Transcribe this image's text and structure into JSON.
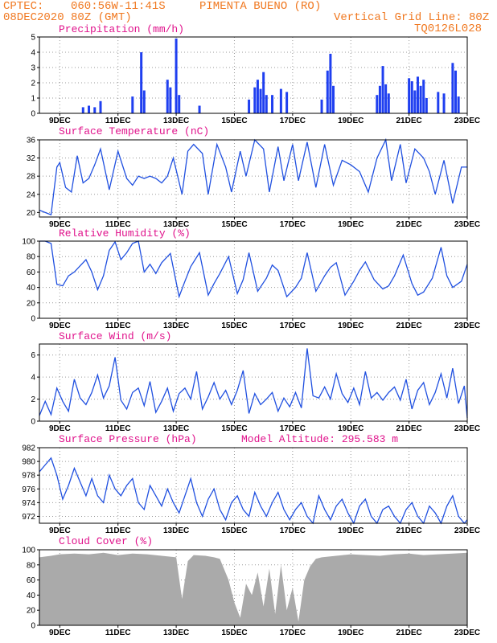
{
  "header": {
    "source": "CPTEC:",
    "coords": "060:56W-11:41S",
    "location": "PIMENTA BUENO (RO)",
    "run": "08DEC2020 80Z (GMT)",
    "grid_note": "Vertical Grid Line: 80Z",
    "code": "TQ0126L028"
  },
  "x_axis": {
    "ticks": [
      "9DEC",
      "11DEC",
      "13DEC",
      "15DEC",
      "17DEC",
      "19DEC",
      "21DEC",
      "23DEC"
    ],
    "tick_days": [
      1,
      3,
      5,
      7,
      9,
      11,
      13,
      15
    ],
    "range_days": [
      0.3,
      15
    ]
  },
  "chart_data": [
    {
      "type": "bar",
      "title": "Precipitation (mm/h)",
      "ylim": [
        0,
        5
      ],
      "yticks": [
        0,
        1,
        2,
        3,
        4,
        5
      ],
      "color": "#1f3ff0",
      "x": [
        1.8,
        2.0,
        2.2,
        2.4,
        3.5,
        3.8,
        3.9,
        4.7,
        4.8,
        5.0,
        5.1,
        5.8,
        7.5,
        7.7,
        7.8,
        7.9,
        8.0,
        8.1,
        8.3,
        8.6,
        8.8,
        10.0,
        10.2,
        10.3,
        10.4,
        11.9,
        12.0,
        12.1,
        12.2,
        12.3,
        13.0,
        13.1,
        13.2,
        13.3,
        13.4,
        13.5,
        13.6,
        14.0,
        14.2,
        14.5,
        14.6,
        14.7
      ],
      "values": [
        0.4,
        0.5,
        0.4,
        0.8,
        1.1,
        4.0,
        1.5,
        2.2,
        1.7,
        4.9,
        1.2,
        0.5,
        0.9,
        1.7,
        2.2,
        1.6,
        2.7,
        1.2,
        1.2,
        1.6,
        1.4,
        0.9,
        2.8,
        3.9,
        1.8,
        1.2,
        1.8,
        3.1,
        1.9,
        1.3,
        2.3,
        2.1,
        1.5,
        2.4,
        1.8,
        2.2,
        1.0,
        1.4,
        1.3,
        3.3,
        2.8,
        1.1
      ]
    },
    {
      "type": "line",
      "title": "Surface Temperature (nC)",
      "ylim": [
        19,
        36
      ],
      "yticks": [
        20,
        24,
        28,
        32,
        36
      ],
      "color": "#2050e0",
      "x": [
        0.3,
        0.5,
        0.7,
        0.9,
        1.0,
        1.2,
        1.4,
        1.6,
        1.8,
        2.0,
        2.2,
        2.4,
        2.7,
        3.0,
        3.3,
        3.5,
        3.7,
        3.9,
        4.1,
        4.3,
        4.5,
        4.7,
        4.9,
        5.2,
        5.4,
        5.6,
        5.9,
        6.1,
        6.4,
        6.7,
        6.9,
        7.2,
        7.4,
        7.7,
        8.0,
        8.2,
        8.5,
        8.7,
        9.0,
        9.2,
        9.5,
        9.8,
        10.1,
        10.4,
        10.7,
        11.0,
        11.3,
        11.6,
        11.9,
        12.2,
        12.4,
        12.7,
        12.9,
        13.2,
        13.5,
        13.7,
        13.9,
        14.2,
        14.5,
        14.8,
        15.0
      ],
      "values": [
        20.5,
        20.0,
        19.5,
        30.0,
        31.0,
        25.5,
        24.5,
        32.5,
        26.5,
        27.5,
        30.5,
        34.0,
        25.0,
        33.5,
        27.5,
        26.0,
        28.0,
        27.5,
        28.0,
        27.5,
        26.5,
        28.0,
        32.0,
        24.0,
        33.5,
        35.0,
        33.0,
        24.0,
        35.0,
        30.0,
        24.5,
        33.5,
        28.0,
        36.0,
        34.0,
        24.5,
        34.5,
        27.0,
        35.0,
        27.0,
        35.5,
        25.5,
        35.0,
        26.0,
        31.5,
        30.5,
        29.0,
        24.5,
        32.0,
        36.0,
        27.0,
        35.0,
        26.5,
        34.0,
        32.0,
        29.0,
        24.0,
        31.5,
        22.0,
        30.0,
        30.0
      ]
    },
    {
      "type": "line",
      "title": "Relative Humidity (%)",
      "ylim": [
        0,
        100
      ],
      "yticks": [
        0,
        20,
        40,
        60,
        80,
        100
      ],
      "color": "#2050e0",
      "x": [
        0.3,
        0.5,
        0.7,
        0.9,
        1.1,
        1.3,
        1.5,
        1.7,
        1.9,
        2.1,
        2.3,
        2.5,
        2.7,
        2.9,
        3.1,
        3.3,
        3.5,
        3.7,
        3.9,
        4.1,
        4.3,
        4.5,
        4.8,
        5.1,
        5.3,
        5.5,
        5.8,
        6.1,
        6.3,
        6.5,
        6.8,
        7.1,
        7.3,
        7.5,
        7.8,
        8.1,
        8.3,
        8.5,
        8.8,
        9.1,
        9.3,
        9.5,
        9.8,
        10.1,
        10.3,
        10.5,
        10.8,
        11.1,
        11.3,
        11.5,
        11.8,
        12.1,
        12.3,
        12.5,
        12.8,
        13.1,
        13.3,
        13.5,
        13.8,
        14.1,
        14.3,
        14.5,
        14.8,
        15.0
      ],
      "values": [
        100,
        100,
        97,
        44,
        42,
        55,
        60,
        68,
        76,
        60,
        37,
        55,
        88,
        99,
        76,
        85,
        97,
        100,
        60,
        70,
        58,
        72,
        84,
        28,
        48,
        67,
        85,
        30,
        45,
        58,
        80,
        32,
        50,
        85,
        35,
        52,
        69,
        62,
        28,
        40,
        52,
        85,
        35,
        55,
        66,
        72,
        30,
        48,
        62,
        73,
        50,
        38,
        42,
        55,
        82,
        45,
        30,
        34,
        52,
        92,
        55,
        40,
        48,
        70
      ]
    },
    {
      "type": "line",
      "title": "Surface Wind (m/s)",
      "ylim": [
        0,
        7
      ],
      "yticks": [
        0,
        2,
        4,
        6
      ],
      "color": "#2050e0",
      "x": [
        0.3,
        0.5,
        0.7,
        0.9,
        1.1,
        1.3,
        1.5,
        1.7,
        1.9,
        2.1,
        2.3,
        2.5,
        2.7,
        2.9,
        3.1,
        3.3,
        3.5,
        3.7,
        3.9,
        4.1,
        4.3,
        4.5,
        4.7,
        4.9,
        5.1,
        5.3,
        5.5,
        5.7,
        5.9,
        6.1,
        6.3,
        6.5,
        6.7,
        6.9,
        7.1,
        7.3,
        7.5,
        7.7,
        7.9,
        8.1,
        8.3,
        8.5,
        8.7,
        8.9,
        9.1,
        9.3,
        9.5,
        9.7,
        9.9,
        10.1,
        10.3,
        10.5,
        10.7,
        10.9,
        11.1,
        11.3,
        11.5,
        11.7,
        11.9,
        12.1,
        12.3,
        12.5,
        12.7,
        12.9,
        13.1,
        13.3,
        13.5,
        13.7,
        13.9,
        14.1,
        14.3,
        14.5,
        14.7,
        14.9,
        15.0
      ],
      "values": [
        0.5,
        1.8,
        0.6,
        3.0,
        1.8,
        0.9,
        3.8,
        2.1,
        1.5,
        2.6,
        4.2,
        2.1,
        3.2,
        5.8,
        1.9,
        1.1,
        2.6,
        3.0,
        1.4,
        3.6,
        0.8,
        1.8,
        3.0,
        0.9,
        2.5,
        3.0,
        2.0,
        4.5,
        1.1,
        2.2,
        3.5,
        2.0,
        2.8,
        1.5,
        2.8,
        4.6,
        0.7,
        2.5,
        1.5,
        2.0,
        2.6,
        0.9,
        2.1,
        1.3,
        2.6,
        1.2,
        6.6,
        2.3,
        2.1,
        3.1,
        2.0,
        4.3,
        2.5,
        1.7,
        3.0,
        1.5,
        4.5,
        2.1,
        2.6,
        1.9,
        2.6,
        3.1,
        1.9,
        3.8,
        1.1,
        2.8,
        3.5,
        1.5,
        2.6,
        4.3,
        2.1,
        4.8,
        1.6,
        3.2,
        0.3
      ]
    },
    {
      "type": "line",
      "title": "Surface Pressure (hPa)",
      "annotation": "Model Altitude: 295.583 m",
      "ylim": [
        971,
        982
      ],
      "yticks": [
        972,
        974,
        976,
        978,
        980,
        982
      ],
      "color": "#2050e0",
      "x": [
        0.3,
        0.5,
        0.7,
        0.9,
        1.1,
        1.3,
        1.5,
        1.7,
        1.9,
        2.1,
        2.3,
        2.5,
        2.7,
        2.9,
        3.1,
        3.3,
        3.5,
        3.7,
        3.9,
        4.1,
        4.3,
        4.5,
        4.7,
        4.9,
        5.1,
        5.3,
        5.5,
        5.7,
        5.9,
        6.1,
        6.3,
        6.5,
        6.7,
        6.9,
        7.1,
        7.3,
        7.5,
        7.7,
        7.9,
        8.1,
        8.3,
        8.5,
        8.7,
        8.9,
        9.1,
        9.3,
        9.5,
        9.7,
        9.9,
        10.1,
        10.3,
        10.5,
        10.7,
        10.9,
        11.1,
        11.3,
        11.5,
        11.7,
        11.9,
        12.1,
        12.3,
        12.5,
        12.7,
        12.9,
        13.1,
        13.3,
        13.5,
        13.7,
        13.9,
        14.1,
        14.3,
        14.5,
        14.7,
        14.9,
        15.0
      ],
      "values": [
        978.5,
        979.5,
        980.5,
        978.0,
        974.5,
        976.5,
        979.0,
        977.0,
        975.0,
        977.5,
        975.0,
        974.0,
        978.0,
        976.0,
        975.0,
        976.5,
        977.5,
        974.0,
        973.0,
        976.5,
        975.0,
        973.5,
        976.0,
        974.0,
        972.5,
        975.0,
        977.5,
        974.0,
        972.0,
        974.5,
        976.0,
        973.0,
        971.5,
        974.0,
        975.0,
        973.0,
        972.0,
        975.5,
        973.5,
        972.0,
        974.0,
        975.5,
        973.0,
        971.5,
        973.0,
        974.0,
        972.0,
        971.0,
        975.0,
        973.0,
        971.5,
        973.5,
        974.5,
        972.5,
        971.0,
        973.5,
        974.5,
        972.0,
        971.0,
        973.0,
        973.5,
        972.0,
        971.0,
        973.0,
        974.0,
        972.0,
        971.0,
        973.5,
        972.5,
        971.0,
        973.5,
        975.0,
        972.0,
        971.0,
        971.5
      ]
    },
    {
      "type": "area",
      "title": "Cloud Cover (%)",
      "ylim": [
        0,
        100
      ],
      "yticks": [
        0,
        20,
        40,
        60,
        80,
        100
      ],
      "color": "#aaaaaa",
      "x": [
        0.3,
        0.7,
        1.0,
        1.5,
        2.0,
        2.5,
        3.0,
        3.5,
        4.0,
        4.5,
        5.0,
        5.2,
        5.4,
        5.6,
        6.0,
        6.3,
        6.5,
        6.8,
        7.0,
        7.2,
        7.4,
        7.6,
        7.8,
        8.0,
        8.2,
        8.4,
        8.6,
        8.8,
        9.0,
        9.2,
        9.4,
        9.6,
        9.8,
        10.0,
        10.5,
        11.0,
        11.5,
        12.0,
        12.5,
        13.0,
        13.5,
        14.0,
        14.5,
        15.0
      ],
      "values": [
        90,
        92,
        94,
        95,
        94,
        96,
        93,
        95,
        94,
        92,
        90,
        35,
        85,
        93,
        92,
        90,
        88,
        60,
        30,
        10,
        55,
        40,
        70,
        25,
        75,
        15,
        80,
        20,
        50,
        5,
        60,
        78,
        88,
        90,
        92,
        94,
        93,
        92,
        94,
        95,
        93,
        94,
        95,
        96
      ]
    }
  ]
}
